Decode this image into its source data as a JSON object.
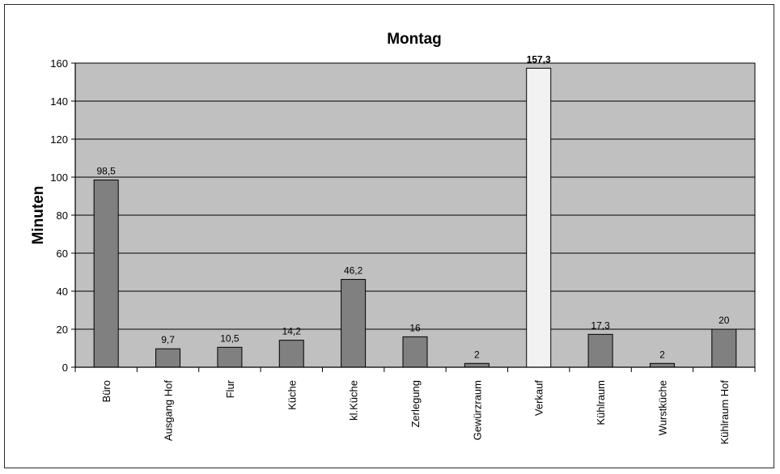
{
  "chart_data": {
    "type": "bar",
    "title": "Montag",
    "xlabel": "",
    "ylabel": "Minuten",
    "ylim": [
      0,
      160
    ],
    "yticks": [
      0,
      20,
      40,
      60,
      80,
      100,
      120,
      140,
      160
    ],
    "grid": true,
    "legend": "none",
    "categories": [
      "Büro",
      "Ausgang Hof",
      "Flur",
      "Küche",
      "kl.Küche",
      "Zerlegung",
      "Gewürzraum",
      "Verkauf",
      "Kühlraum",
      "Wurstküche",
      "Kühlraum Hof"
    ],
    "values": [
      98.5,
      9.7,
      10.5,
      14.2,
      46.2,
      16,
      2,
      157.3,
      17.3,
      2,
      20
    ],
    "data_labels": [
      "98,5",
      "9,7",
      "10,5",
      "14,2",
      "46,2",
      "16",
      "2",
      "157,3",
      "17,3",
      "2",
      "20"
    ],
    "highlight_index": 7,
    "colors": {
      "plot_background": "#c0c0c0",
      "bar": "#808080",
      "bar_highlight": "#f2f2f2",
      "bar_border": "#000000",
      "gridline": "#000000"
    }
  }
}
